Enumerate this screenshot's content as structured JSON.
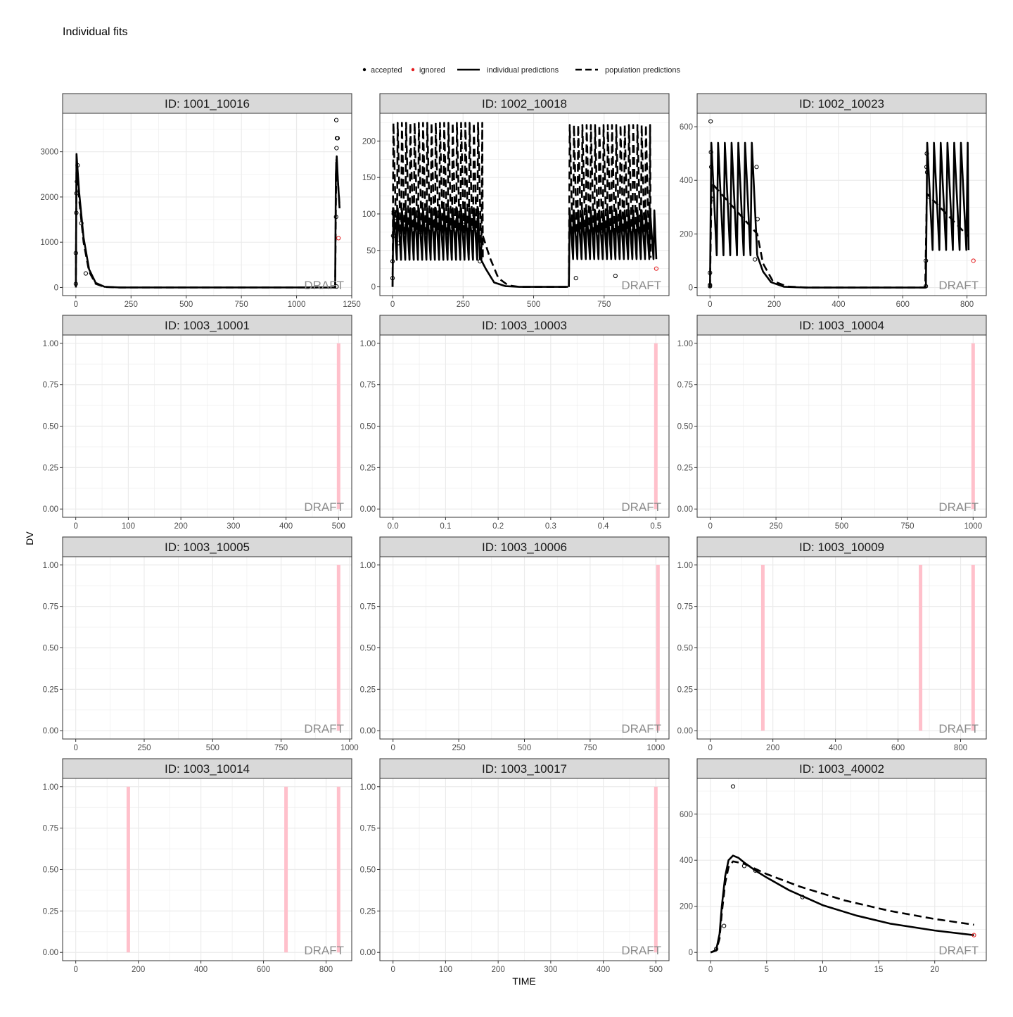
{
  "page": {
    "title": "Individual fits"
  },
  "legend": {
    "items": [
      {
        "key": "accepted",
        "label": "accepted",
        "kind": "dot",
        "color": "#000000"
      },
      {
        "key": "ignored",
        "label": "ignored",
        "kind": "dot",
        "color": "#e41a1c"
      },
      {
        "key": "ipred",
        "label": "individual predictions",
        "kind": "solid",
        "color": "#000000"
      },
      {
        "key": "pred",
        "label": "population predictions",
        "kind": "dashed",
        "color": "#000000"
      }
    ]
  },
  "axes": {
    "xlabel": "TIME",
    "ylabel": "DV"
  },
  "watermark": "DRAFT",
  "colors": {
    "panel_strip": "#d9d9d9",
    "grid": "#ebebeb",
    "ignored": "#e41a1c",
    "band": "#ffc0cb",
    "line": "#000000"
  },
  "chart_data": [
    {
      "type": "line",
      "strip": "ID: 1001_10016",
      "xlim": [
        -60,
        1250
      ],
      "ylim": [
        -180,
        3850
      ],
      "xticks": [
        0,
        250,
        500,
        750,
        1000,
        1250
      ],
      "yticks": [
        0,
        1000,
        2000,
        3000
      ],
      "ipred": [
        [
          0,
          0
        ],
        [
          3,
          2950
        ],
        [
          15,
          2100
        ],
        [
          35,
          1100
        ],
        [
          60,
          400
        ],
        [
          90,
          100
        ],
        [
          130,
          15
        ],
        [
          200,
          0
        ],
        [
          1175,
          0
        ],
        [
          1178,
          2500
        ],
        [
          1182,
          2900
        ],
        [
          1187,
          2400
        ],
        [
          1195,
          1750
        ]
      ],
      "pred": [
        [
          0,
          0
        ],
        [
          3,
          2800
        ],
        [
          15,
          1950
        ],
        [
          35,
          1000
        ],
        [
          60,
          350
        ],
        [
          90,
          80
        ],
        [
          130,
          10
        ],
        [
          200,
          0
        ],
        [
          1175,
          0
        ],
        [
          1180,
          2850
        ],
        [
          1185,
          2500
        ],
        [
          1195,
          1800
        ]
      ],
      "observed": [
        [
          0,
          80
        ],
        [
          0,
          760
        ],
        [
          2,
          1650
        ],
        [
          3,
          2080
        ],
        [
          5,
          2340
        ],
        [
          8,
          2700
        ],
        [
          25,
          1420
        ],
        [
          45,
          310
        ],
        [
          1180,
          3700
        ],
        [
          1183,
          3300
        ],
        [
          1186,
          3300
        ],
        [
          1181,
          3080
        ],
        [
          1179,
          1560
        ],
        [
          1181,
          20
        ]
      ],
      "ignored": [
        [
          1190,
          1090
        ]
      ],
      "bands": []
    },
    {
      "type": "line",
      "strip": "ID: 1002_10018",
      "xlim": [
        -45,
        980
      ],
      "ylim": [
        -12,
        238
      ],
      "xticks": [
        0,
        250,
        500,
        750
      ],
      "yticks": [
        0,
        50,
        100,
        150,
        200
      ],
      "ipred_periodic": [
        {
          "start": 0,
          "end": 310,
          "period": 15,
          "peak": 108,
          "trough": 37
        },
        {
          "start": 625,
          "end": 935,
          "period": 15,
          "peak": 105,
          "trough": 38
        }
      ],
      "pred_periodic": [
        {
          "start": 0,
          "end": 320,
          "period": 15,
          "peak": 225,
          "trough": 38
        },
        {
          "start": 625,
          "end": 915,
          "period": 15,
          "peak": 222,
          "trough": 40
        }
      ],
      "ipred": [
        [
          310,
          40
        ],
        [
          330,
          25
        ],
        [
          360,
          6
        ],
        [
          400,
          1
        ],
        [
          450,
          0
        ],
        [
          622,
          0
        ]
      ],
      "pred": [
        [
          320,
          70
        ],
        [
          345,
          40
        ],
        [
          375,
          12
        ],
        [
          410,
          2
        ],
        [
          450,
          0
        ],
        [
          622,
          0
        ]
      ],
      "observed": [
        [
          0,
          12
        ],
        [
          0,
          35
        ],
        [
          2,
          70
        ],
        [
          4,
          100
        ],
        [
          4,
          103
        ],
        [
          10,
          95
        ],
        [
          20,
          60
        ],
        [
          50,
          80
        ],
        [
          100,
          75
        ],
        [
          150,
          90
        ],
        [
          250,
          85
        ],
        [
          300,
          100
        ],
        [
          310,
          35
        ],
        [
          650,
          12
        ],
        [
          790,
          15
        ]
      ],
      "ignored": [
        [
          935,
          25
        ]
      ],
      "bands": []
    },
    {
      "type": "line",
      "strip": "ID: 1002_10023",
      "xlim": [
        -40,
        860
      ],
      "ylim": [
        -30,
        650
      ],
      "xticks": [
        0,
        200,
        400,
        600,
        800
      ],
      "yticks": [
        0,
        200,
        400,
        600
      ],
      "ipred_periodic": [
        {
          "start": 0,
          "end": 147,
          "period": 21,
          "peak": 540,
          "trough": 120
        },
        {
          "start": 672,
          "end": 805,
          "period": 21,
          "peak": 540,
          "trough": 140
        }
      ],
      "pred_periodic": [],
      "ipred": [
        [
          147,
          120
        ],
        [
          165,
          60
        ],
        [
          190,
          20
        ],
        [
          230,
          3
        ],
        [
          300,
          0
        ],
        [
          670,
          0
        ]
      ],
      "pred": [
        [
          0,
          0
        ],
        [
          5,
          390
        ],
        [
          147,
          200
        ],
        [
          165,
          90
        ],
        [
          195,
          25
        ],
        [
          240,
          4
        ],
        [
          300,
          0
        ],
        [
          670,
          0
        ],
        [
          675,
          350
        ],
        [
          805,
          190
        ]
      ],
      "observed": [
        [
          0,
          10
        ],
        [
          0,
          5
        ],
        [
          0,
          55
        ],
        [
          2,
          620
        ],
        [
          3,
          505
        ],
        [
          4,
          450
        ],
        [
          8,
          330
        ],
        [
          145,
          450
        ],
        [
          148,
          255
        ],
        [
          140,
          105
        ],
        [
          672,
          100
        ],
        [
          675,
          500
        ],
        [
          674,
          450
        ],
        [
          676,
          430
        ],
        [
          680,
          340
        ],
        [
          672,
          5
        ]
      ],
      "ignored": [
        [
          820,
          100
        ]
      ],
      "bands": []
    },
    {
      "type": "line",
      "strip": "ID: 1003_10001",
      "xlim": [
        -25,
        525
      ],
      "ylim": [
        -0.05,
        1.05
      ],
      "xticks": [
        0,
        100,
        200,
        300,
        400,
        500
      ],
      "yticks": [
        0.0,
        0.25,
        0.5,
        0.75,
        1.0
      ],
      "ipred": [],
      "pred": [],
      "observed": [],
      "ignored": [],
      "bands": [
        500
      ]
    },
    {
      "type": "line",
      "strip": "ID: 1003_10003",
      "xlim": [
        -0.025,
        0.525
      ],
      "ylim": [
        -0.05,
        1.05
      ],
      "xticks": [
        0.0,
        0.1,
        0.2,
        0.3,
        0.4,
        0.5
      ],
      "yticks": [
        0.0,
        0.25,
        0.5,
        0.75,
        1.0
      ],
      "ipred": [],
      "pred": [],
      "observed": [],
      "ignored": [],
      "bands": [
        0.5
      ]
    },
    {
      "type": "line",
      "strip": "ID: 1003_10004",
      "xlim": [
        -50,
        1050
      ],
      "ylim": [
        -0.05,
        1.05
      ],
      "xticks": [
        0,
        250,
        500,
        750,
        1000
      ],
      "yticks": [
        0.0,
        0.25,
        0.5,
        0.75,
        1.0
      ],
      "ipred": [],
      "pred": [],
      "observed": [],
      "ignored": [],
      "bands": [
        1000
      ]
    },
    {
      "type": "line",
      "strip": "ID: 1003_10005",
      "xlim": [
        -48,
        1008
      ],
      "ylim": [
        -0.05,
        1.05
      ],
      "xticks": [
        0,
        250,
        500,
        750,
        1000
      ],
      "yticks": [
        0.0,
        0.25,
        0.5,
        0.75,
        1.0
      ],
      "ipred": [],
      "pred": [],
      "observed": [],
      "ignored": [],
      "bands": [
        960
      ]
    },
    {
      "type": "line",
      "strip": "ID: 1003_10006",
      "xlim": [
        -50,
        1050
      ],
      "ylim": [
        -0.05,
        1.05
      ],
      "xticks": [
        0,
        250,
        500,
        750,
        1000
      ],
      "yticks": [
        0.0,
        0.25,
        0.5,
        0.75,
        1.0
      ],
      "ipred": [],
      "pred": [],
      "observed": [],
      "ignored": [],
      "bands": [
        1008
      ]
    },
    {
      "type": "line",
      "strip": "ID: 1003_10009",
      "xlim": [
        -42,
        882
      ],
      "ylim": [
        -0.05,
        1.05
      ],
      "xticks": [
        0,
        200,
        400,
        600,
        800
      ],
      "yticks": [
        0.0,
        0.25,
        0.5,
        0.75,
        1.0
      ],
      "ipred": [],
      "pred": [],
      "observed": [],
      "ignored": [],
      "bands": [
        168,
        672,
        840
      ]
    },
    {
      "type": "line",
      "strip": "ID: 1003_10014",
      "xlim": [
        -42,
        882
      ],
      "ylim": [
        -0.05,
        1.05
      ],
      "xticks": [
        0,
        200,
        400,
        600,
        800
      ],
      "yticks": [
        0.0,
        0.25,
        0.5,
        0.75,
        1.0
      ],
      "ipred": [],
      "pred": [],
      "observed": [],
      "ignored": [],
      "bands": [
        168,
        672,
        840
      ]
    },
    {
      "type": "line",
      "strip": "ID: 1003_10017",
      "xlim": [
        -25,
        525
      ],
      "ylim": [
        -0.05,
        1.05
      ],
      "xticks": [
        0,
        100,
        200,
        300,
        400,
        500
      ],
      "yticks": [
        0.0,
        0.25,
        0.5,
        0.75,
        1.0
      ],
      "ipred": [],
      "pred": [],
      "observed": [],
      "ignored": [],
      "bands": [
        500
      ]
    },
    {
      "type": "line",
      "strip": "ID: 1003_40002",
      "xlim": [
        -1.2,
        24.6
      ],
      "ylim": [
        -36,
        755
      ],
      "xticks": [
        0,
        5,
        10,
        15,
        20
      ],
      "yticks": [
        0,
        200,
        400,
        600
      ],
      "ipred": [
        [
          0,
          0
        ],
        [
          0.5,
          10
        ],
        [
          0.8,
          80
        ],
        [
          1.0,
          200
        ],
        [
          1.3,
          330
        ],
        [
          1.6,
          400
        ],
        [
          2.0,
          420
        ],
        [
          2.5,
          410
        ],
        [
          3,
          390
        ],
        [
          4,
          355
        ],
        [
          5,
          325
        ],
        [
          7,
          270
        ],
        [
          10,
          205
        ],
        [
          13,
          160
        ],
        [
          16,
          125
        ],
        [
          20,
          95
        ],
        [
          23.5,
          75
        ]
      ],
      "pred": [
        [
          0,
          0
        ],
        [
          0.5,
          8
        ],
        [
          0.8,
          60
        ],
        [
          1.0,
          170
        ],
        [
          1.3,
          300
        ],
        [
          1.6,
          370
        ],
        [
          2.0,
          395
        ],
        [
          3,
          385
        ],
        [
          5,
          340
        ],
        [
          8,
          285
        ],
        [
          12,
          225
        ],
        [
          16,
          180
        ],
        [
          20,
          145
        ],
        [
          23.5,
          120
        ]
      ],
      "observed": [
        [
          0.5,
          15
        ],
        [
          1.2,
          115
        ],
        [
          2.0,
          720
        ],
        [
          3.0,
          375
        ],
        [
          4.0,
          355
        ],
        [
          8.2,
          240
        ]
      ],
      "ignored": [
        [
          23.5,
          75
        ]
      ],
      "bands": []
    }
  ]
}
